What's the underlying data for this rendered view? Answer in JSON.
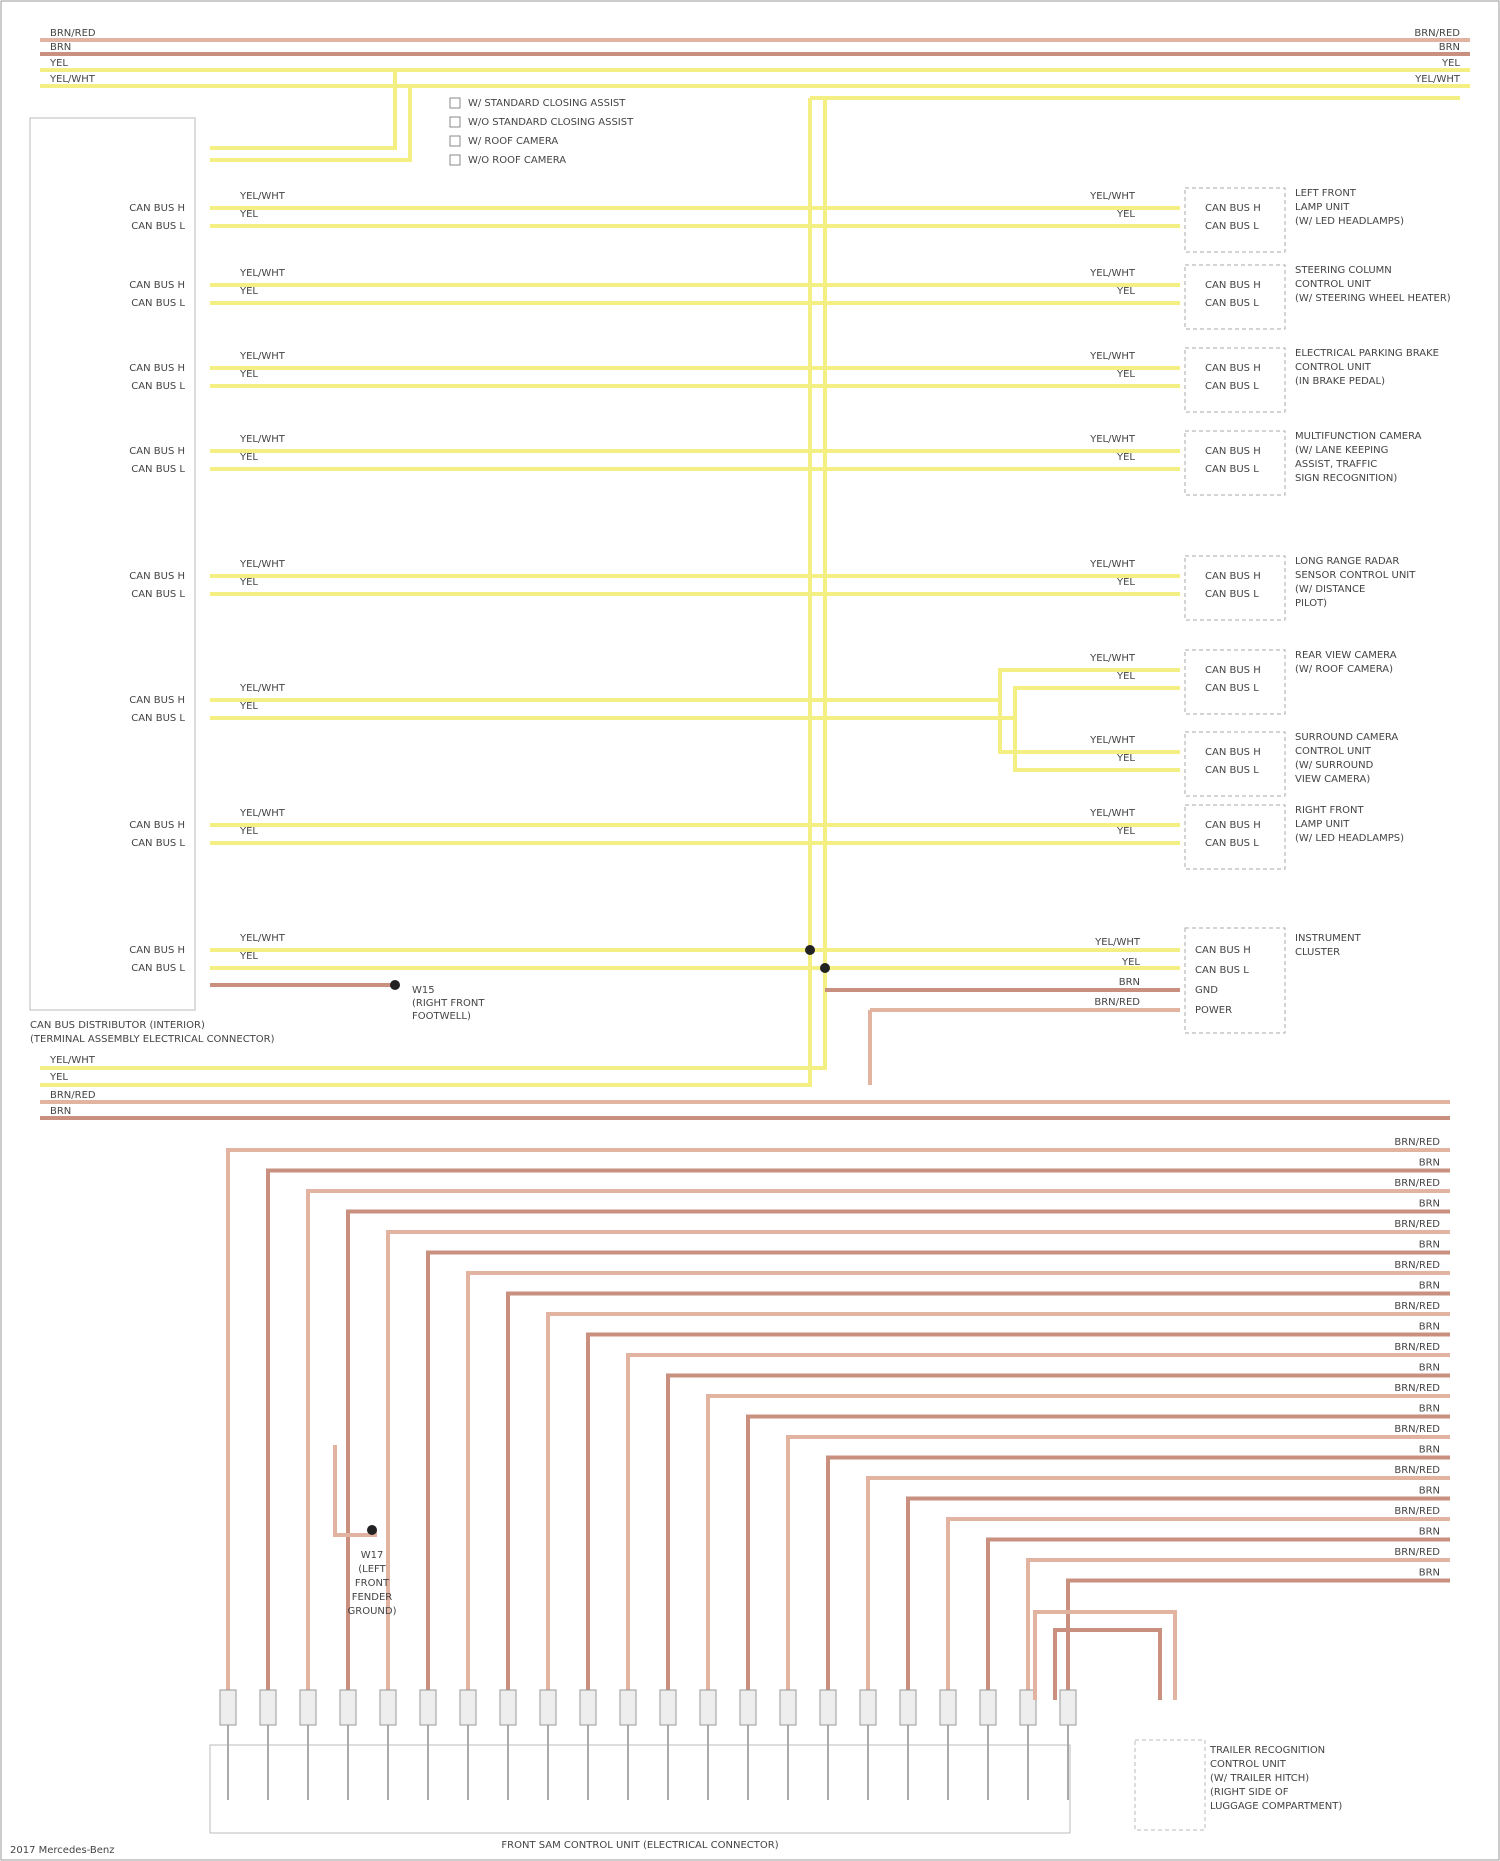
{
  "header": {
    "top_wires": [
      "BRN/RED",
      "BRN",
      "YEL",
      "YEL/WHT"
    ]
  },
  "legend": [
    "W/ STANDARD CLOSING ASSIST",
    "W/O STANDARD CLOSING ASSIST",
    "W/ ROOF CAMERA",
    "W/O ROOF CAMERA"
  ],
  "distributor": {
    "pin_high": "CAN BUS H",
    "pin_low": "CAN BUS L",
    "caption": [
      "CAN BUS DISTRIBUTOR (INTERIOR)",
      "(TERMINAL ASSEMBLY ELECTRICAL CONNECTOR)"
    ]
  },
  "wire_colors": {
    "high": "YEL/WHT",
    "low": "YEL",
    "ground": "BRN"
  },
  "modules": [
    {
      "lines": [
        "LEFT FRONT",
        "LAMP UNIT",
        "(W/ LED HEADLAMPS)"
      ]
    },
    {
      "lines": [
        "STEERING COLUMN",
        "CONTROL UNIT",
        "(W/ STEERING WHEEL HEATER)"
      ]
    },
    {
      "lines": [
        "ELECTRICAL PARKING BRAKE",
        "CONTROL UNIT",
        "(IN BRAKE PEDAL)"
      ]
    },
    {
      "lines": [
        "MULTIFUNCTION CAMERA",
        "(W/ LANE KEEPING",
        "ASSIST, TRAFFIC",
        "SIGN RECOGNITION)"
      ]
    },
    {
      "lines": [
        "LONG RANGE RADAR",
        "SENSOR CONTROL UNIT",
        "(W/ DISTANCE",
        "PILOT)"
      ]
    },
    {
      "lines": [
        "REAR VIEW CAMERA",
        "(W/ ROOF CAMERA)"
      ]
    },
    {
      "lines": [
        "SURROUND CAMERA",
        "CONTROL UNIT",
        "(W/ SURROUND",
        "VIEW CAMERA)"
      ]
    },
    {
      "lines": [
        "RIGHT FRONT",
        "LAMP UNIT",
        "(W/ LED HEADLAMPS)"
      ]
    }
  ],
  "cluster": {
    "lines": [
      "INSTRUMENT",
      "CLUSTER"
    ],
    "pins": [
      "CAN BUS H",
      "CAN BUS L",
      "GND",
      "POWER"
    ],
    "wires": [
      "YEL/WHT",
      "YEL",
      "BRN",
      "BRN/RED"
    ]
  },
  "ground": {
    "lines": [
      "W15",
      "(RIGHT FRONT",
      "FOOTWELL)"
    ]
  },
  "ground_bottom": {
    "lines": [
      "W17",
      "(LEFT",
      "FRONT",
      "FENDER",
      "GROUND)"
    ]
  },
  "bottom_wires": [
    "BRN/RED",
    "BRN"
  ],
  "trailer": {
    "lines": [
      "TRAILER RECOGNITION",
      "CONTROL UNIT",
      "(W/ TRAILER HITCH)",
      "(RIGHT SIDE OF",
      "LUGGAGE COMPARTMENT)"
    ]
  },
  "sam": {
    "caption": "FRONT SAM CONTROL UNIT (ELECTRICAL CONNECTOR)"
  },
  "footer": "2017 Mercedes-Benz"
}
